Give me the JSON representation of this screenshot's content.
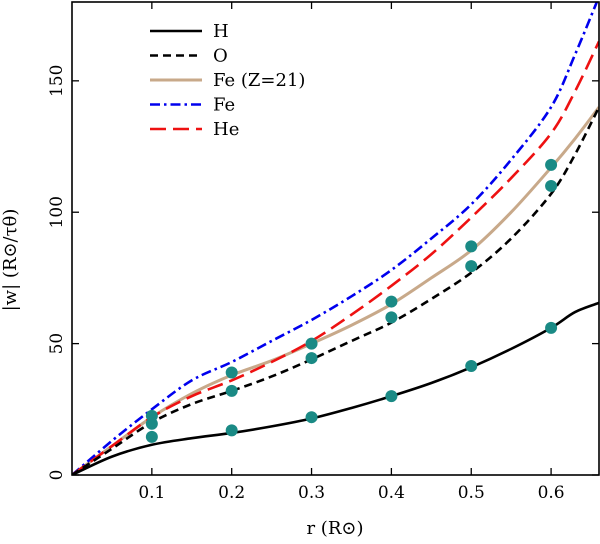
{
  "chart_data": {
    "type": "line",
    "title": "",
    "xlabel": "r (R⊙)",
    "ylabel": "|w| (R⊙/τθ)",
    "xlim": [
      0,
      0.66
    ],
    "ylim": [
      0,
      180
    ],
    "xticks": [
      0.1,
      0.2,
      0.3,
      0.4,
      0.5,
      0.6
    ],
    "xtick_labels": [
      "0.1",
      "0.2",
      "0.3",
      "0.4",
      "0.5",
      "0.6"
    ],
    "yticks": [
      0,
      50,
      100,
      150
    ],
    "ytick_labels": [
      "0",
      "50",
      "100",
      "150"
    ],
    "legend_position": "top-left",
    "series": [
      {
        "name": "H",
        "style": "solid",
        "color": "#000000",
        "x": [
          0,
          0.05,
          0.1,
          0.15,
          0.2,
          0.25,
          0.3,
          0.35,
          0.4,
          0.45,
          0.5,
          0.55,
          0.6,
          0.63,
          0.66
        ],
        "y": [
          0,
          7,
          11.5,
          14,
          16,
          18.5,
          21.5,
          25.5,
          30,
          35,
          41,
          48,
          56,
          62,
          65.5
        ]
      },
      {
        "name": "O",
        "style": "dashed",
        "color": "#000000",
        "x": [
          0,
          0.05,
          0.1,
          0.15,
          0.2,
          0.25,
          0.3,
          0.35,
          0.4,
          0.45,
          0.5,
          0.55,
          0.6,
          0.63,
          0.66
        ],
        "y": [
          0,
          10,
          20,
          27,
          32,
          37.5,
          44,
          51,
          58,
          67,
          77,
          90,
          107,
          122,
          140
        ]
      },
      {
        "name": "Fe (Z=21)",
        "style": "solid",
        "color": "#c8a98a",
        "x": [
          0,
          0.05,
          0.1,
          0.15,
          0.2,
          0.25,
          0.3,
          0.35,
          0.4,
          0.45,
          0.5,
          0.55,
          0.6,
          0.63,
          0.66
        ],
        "y": [
          0,
          11,
          22,
          31,
          38,
          43.5,
          50,
          57,
          65,
          75,
          85.5,
          100,
          117,
          128,
          140
        ]
      },
      {
        "name": "Fe",
        "style": "dashdot",
        "color": "#0000ee",
        "x": [
          0,
          0.05,
          0.1,
          0.15,
          0.2,
          0.25,
          0.3,
          0.35,
          0.4,
          0.45,
          0.5,
          0.55,
          0.6,
          0.63,
          0.66
        ],
        "y": [
          0,
          13,
          25,
          36,
          43,
          51,
          59,
          68,
          78,
          90,
          103,
          120,
          140,
          160,
          182
        ]
      },
      {
        "name": "He",
        "style": "longdash",
        "color": "#ee1111",
        "x": [
          0,
          0.05,
          0.1,
          0.15,
          0.2,
          0.25,
          0.3,
          0.35,
          0.4,
          0.45,
          0.5,
          0.55,
          0.6,
          0.63,
          0.66
        ],
        "y": [
          0,
          11,
          22,
          30,
          36,
          43,
          51,
          61,
          72,
          84,
          98,
          113,
          130,
          146,
          165
        ]
      }
    ],
    "markers": {
      "color": "#1a8a85",
      "points": [
        {
          "x": 0.1,
          "y": 14.5
        },
        {
          "x": 0.1,
          "y": 19.5
        },
        {
          "x": 0.1,
          "y": 22.5
        },
        {
          "x": 0.2,
          "y": 17
        },
        {
          "x": 0.2,
          "y": 32
        },
        {
          "x": 0.2,
          "y": 39
        },
        {
          "x": 0.3,
          "y": 22
        },
        {
          "x": 0.3,
          "y": 44.5
        },
        {
          "x": 0.3,
          "y": 50
        },
        {
          "x": 0.4,
          "y": 30
        },
        {
          "x": 0.4,
          "y": 60
        },
        {
          "x": 0.4,
          "y": 66
        },
        {
          "x": 0.5,
          "y": 41.5
        },
        {
          "x": 0.5,
          "y": 79.5
        },
        {
          "x": 0.5,
          "y": 87
        },
        {
          "x": 0.6,
          "y": 56
        },
        {
          "x": 0.6,
          "y": 110
        },
        {
          "x": 0.6,
          "y": 118
        }
      ]
    }
  }
}
